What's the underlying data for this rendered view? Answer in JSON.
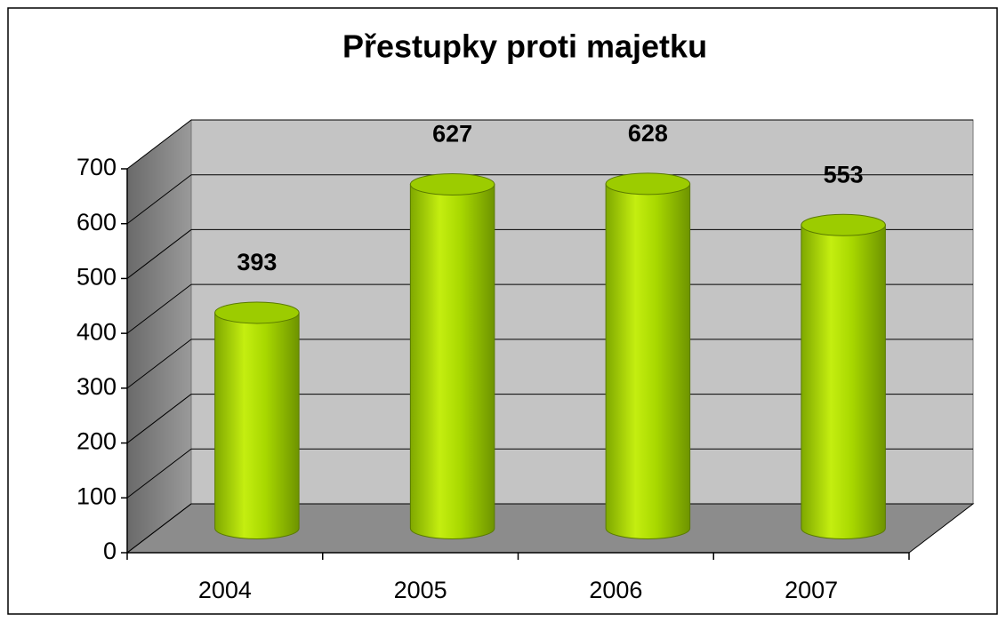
{
  "chart_data": {
    "type": "bar",
    "title": "Přestupky proti majetku",
    "categories": [
      "2004",
      "2005",
      "2006",
      "2007"
    ],
    "values": [
      393,
      627,
      628,
      553
    ],
    "color": "#9ccc00",
    "ylim": [
      0,
      700
    ],
    "yticks": [
      0,
      100,
      200,
      300,
      400,
      500,
      600,
      700
    ],
    "grid": true
  }
}
